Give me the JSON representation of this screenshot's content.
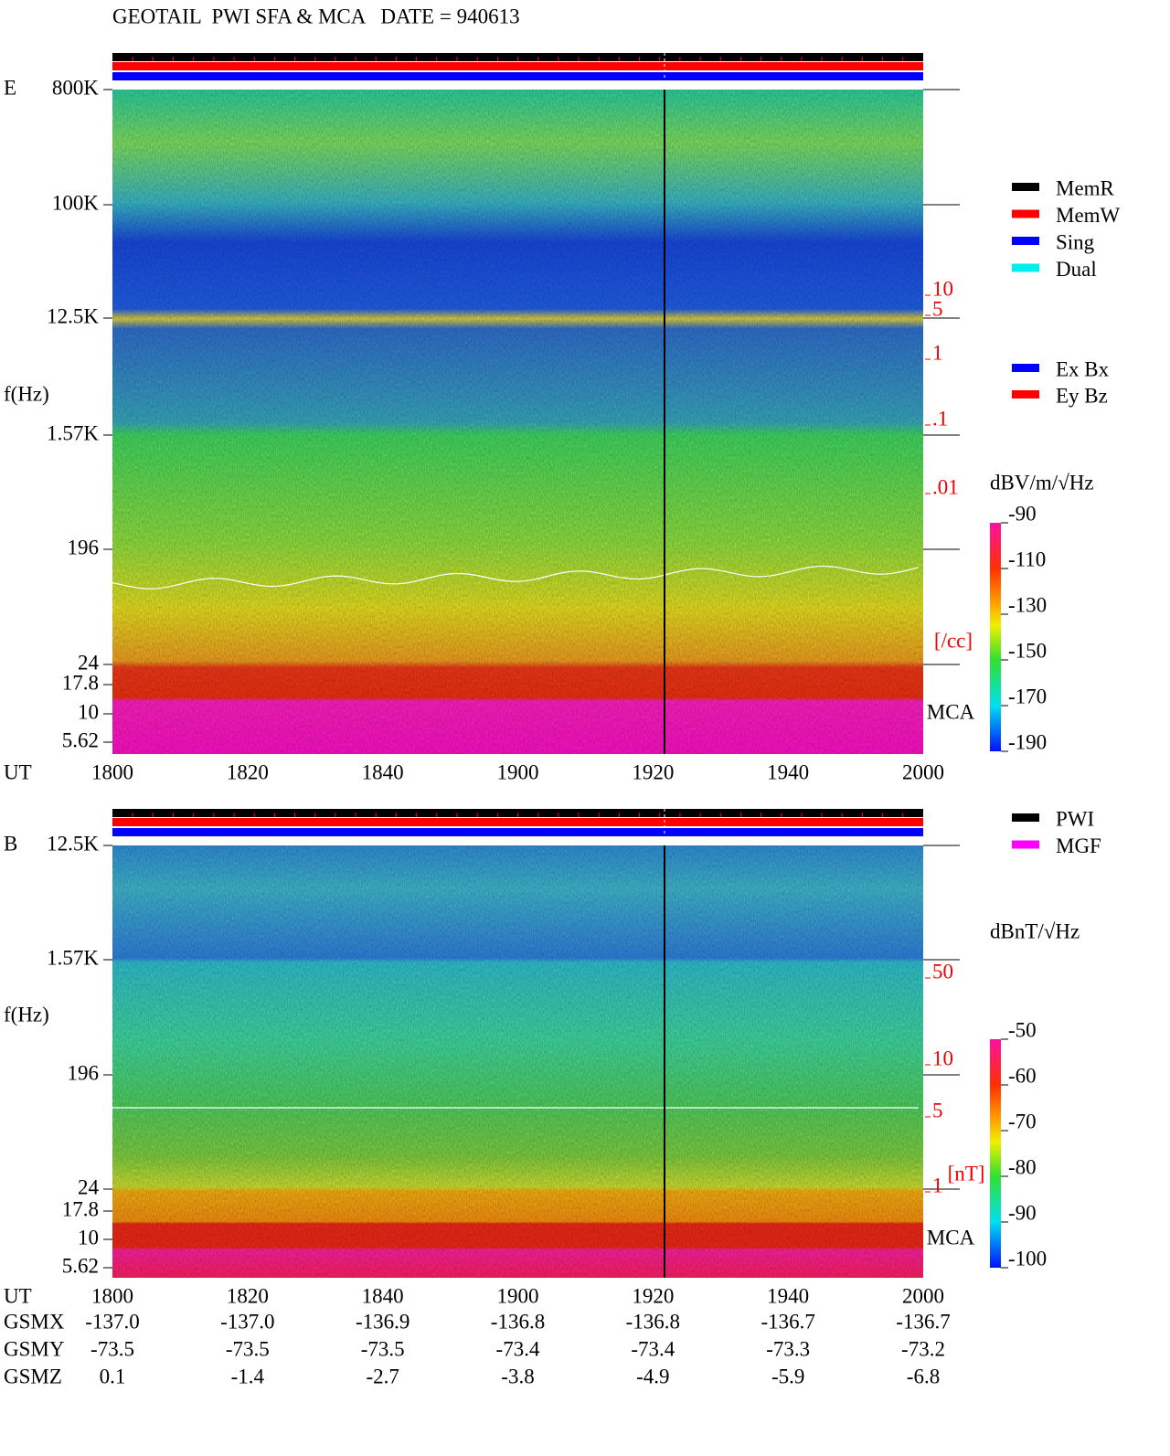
{
  "title": "GEOTAIL  PWI SFA & MCA   DATE = 940613",
  "panels": [
    {
      "label": "E",
      "freq_labels": [
        "800K",
        "100K",
        "12.5K",
        "1.57K",
        "196",
        "24",
        "17.8",
        "10",
        "5.62"
      ],
      "axis_label": "f(Hz)",
      "ut_label": "UT",
      "ut_ticks": [
        "1800",
        "1820",
        "1840",
        "1900",
        "1920",
        "1940",
        "2000"
      ],
      "scale_labels": [
        "10",
        "5",
        "1",
        ".1",
        ".01"
      ],
      "scale_unit": "[/cc]",
      "mca_label": "MCA",
      "legend": [
        {
          "name": "MemR",
          "color": "#000000"
        },
        {
          "name": "MemW",
          "color": "#ff0000"
        },
        {
          "name": "Sing",
          "color": "#0000ff"
        },
        {
          "name": "Dual",
          "color": "#00eeee"
        }
      ],
      "legend2": [
        {
          "name": "Ex Bx",
          "color": "#0000ff"
        },
        {
          "name": "Ey Bz",
          "color": "#ff0000"
        }
      ],
      "colorbar": {
        "title": "dBV/m/√Hz",
        "lim": [
          -190,
          -90
        ],
        "ticks": [
          -90,
          -110,
          -130,
          -150,
          -170,
          -190
        ]
      }
    },
    {
      "label": "B",
      "freq_labels": [
        "12.5K",
        "1.57K",
        "196",
        "24",
        "17.8",
        "10",
        "5.62"
      ],
      "axis_label": "f(Hz)",
      "ut_label": "UT",
      "ut_ticks": [
        "1800",
        "1820",
        "1840",
        "1900",
        "1920",
        "1940",
        "2000"
      ],
      "scale_labels": [
        "50",
        "10",
        "5",
        "1"
      ],
      "scale_unit": "[nT]",
      "mca_label": "MCA",
      "legend": [
        {
          "name": "PWI",
          "color": "#000000"
        },
        {
          "name": "MGF",
          "color": "#ff00ff"
        }
      ],
      "legend2": [],
      "colorbar": {
        "title": "dBnT/√Hz",
        "lim": [
          -100,
          -50
        ],
        "ticks": [
          -50,
          -60,
          -70,
          -80,
          -90,
          -100
        ]
      }
    }
  ],
  "orbit": {
    "rows": [
      {
        "label": "GSMX",
        "values": [
          "-137.0",
          "-137.0",
          "-136.9",
          "-136.8",
          "-136.8",
          "-136.7",
          "-136.7"
        ]
      },
      {
        "label": "GSMY",
        "values": [
          "-73.5",
          "-73.5",
          "-73.5",
          "-73.4",
          "-73.4",
          "-73.3",
          "-73.2"
        ]
      },
      {
        "label": "GSMZ",
        "values": [
          "0.1",
          "-1.4",
          "-2.7",
          "-3.8",
          "-4.9",
          "-5.9",
          "-6.8"
        ]
      }
    ]
  }
}
